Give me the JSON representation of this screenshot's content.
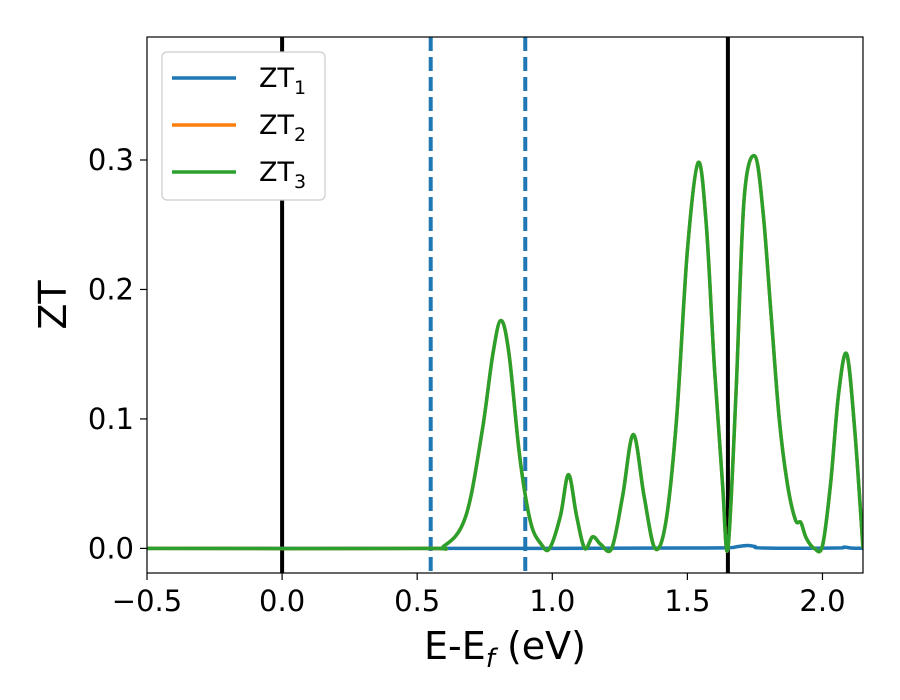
{
  "chart_data": {
    "type": "line",
    "xlabel": {
      "main": "E-E",
      "sub": "f",
      "unit": " (eV)"
    },
    "ylabel": "ZT",
    "xlim": [
      -0.5,
      2.15
    ],
    "ylim": [
      -0.019,
      0.395
    ],
    "x_ticks": [
      "−0.5",
      "0.0",
      "0.5",
      "1.0",
      "1.5",
      "2.0"
    ],
    "x_tick_values": [
      -0.5,
      0.0,
      0.5,
      1.0,
      1.5,
      2.0
    ],
    "y_ticks": [
      "0.0",
      "0.1",
      "0.2",
      "0.3"
    ],
    "y_tick_values": [
      0.0,
      0.1,
      0.2,
      0.3
    ],
    "grid": false,
    "legend_position": "top-left",
    "vlines": [
      {
        "x": 0.0,
        "color": "#000000",
        "style": "solid"
      },
      {
        "x": 0.55,
        "color": "#1f77b4",
        "style": "dashed"
      },
      {
        "x": 0.9,
        "color": "#1f77b4",
        "style": "dashed"
      },
      {
        "x": 1.65,
        "color": "#000000",
        "style": "solid"
      }
    ],
    "series": [
      {
        "name": "ZT",
        "sub": "1",
        "color": "#1f77b4",
        "x": [
          -0.5,
          0.5,
          1.0,
          1.5,
          1.65,
          1.68,
          1.72,
          1.75,
          1.78,
          2.05,
          2.08,
          2.11,
          2.15
        ],
        "y": [
          0,
          0,
          0,
          0.0003,
          0.0005,
          0.0012,
          0.0022,
          0.0015,
          0.0003,
          0.0003,
          0.001,
          0.0002,
          0.0001
        ]
      },
      {
        "name": "ZT",
        "sub": "2",
        "color": "#ff7f0e",
        "x": [
          -0.5,
          0.5,
          0.6,
          0.68,
          0.74,
          0.78,
          0.81,
          0.84,
          0.88,
          0.92,
          0.96,
          0.99,
          1.03,
          1.06,
          1.09,
          1.12,
          1.15,
          1.18,
          1.22,
          1.26,
          1.3,
          1.34,
          1.38,
          1.42,
          1.46,
          1.5,
          1.54,
          1.57,
          1.6,
          1.63,
          1.65,
          1.68,
          1.71,
          1.75,
          1.78,
          1.81,
          1.84,
          1.87,
          1.9,
          1.92,
          1.94,
          1.97,
          2.0,
          2.03,
          2.06,
          2.09,
          2.12,
          2.15
        ],
        "y": [
          0,
          0,
          0.002,
          0.025,
          0.09,
          0.15,
          0.176,
          0.15,
          0.07,
          0.02,
          0.003,
          0.0,
          0.025,
          0.057,
          0.025,
          0.0,
          0.009,
          0.003,
          0.0,
          0.04,
          0.088,
          0.04,
          0.0,
          0.02,
          0.1,
          0.23,
          0.298,
          0.25,
          0.14,
          0.05,
          0.0,
          0.12,
          0.27,
          0.303,
          0.26,
          0.18,
          0.1,
          0.05,
          0.022,
          0.02,
          0.008,
          0.0,
          0.002,
          0.05,
          0.12,
          0.15,
          0.09,
          0.0
        ]
      },
      {
        "name": "ZT",
        "sub": "3",
        "color": "#2ca02c",
        "x": [
          -0.5,
          0.5,
          0.6,
          0.68,
          0.74,
          0.78,
          0.81,
          0.84,
          0.88,
          0.92,
          0.96,
          0.99,
          1.03,
          1.06,
          1.09,
          1.12,
          1.15,
          1.18,
          1.22,
          1.26,
          1.3,
          1.34,
          1.38,
          1.42,
          1.46,
          1.5,
          1.54,
          1.57,
          1.6,
          1.63,
          1.65,
          1.68,
          1.71,
          1.75,
          1.78,
          1.81,
          1.84,
          1.87,
          1.9,
          1.92,
          1.94,
          1.97,
          2.0,
          2.03,
          2.06,
          2.09,
          2.12,
          2.15
        ],
        "y": [
          0,
          0,
          0.002,
          0.025,
          0.09,
          0.15,
          0.176,
          0.15,
          0.07,
          0.02,
          0.003,
          0.0,
          0.025,
          0.057,
          0.025,
          0.0,
          0.009,
          0.003,
          0.0,
          0.04,
          0.088,
          0.04,
          0.0,
          0.02,
          0.1,
          0.23,
          0.298,
          0.25,
          0.14,
          0.05,
          0.0,
          0.12,
          0.27,
          0.303,
          0.26,
          0.18,
          0.1,
          0.05,
          0.022,
          0.02,
          0.008,
          0.0,
          0.002,
          0.05,
          0.12,
          0.15,
          0.09,
          0.0
        ]
      }
    ]
  }
}
